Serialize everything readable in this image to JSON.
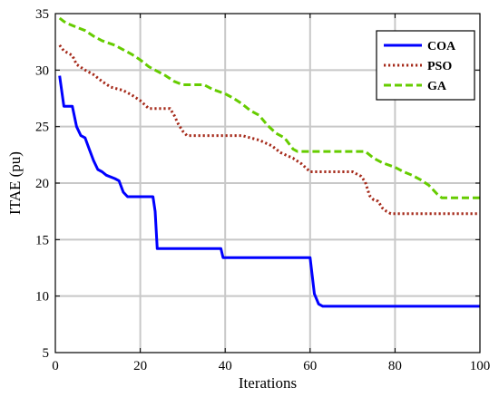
{
  "chart_data": {
    "type": "line",
    "title": "",
    "xlabel": "Iterations",
    "ylabel": "ITAE (pu)",
    "xlim": [
      0,
      100
    ],
    "ylim": [
      5,
      35
    ],
    "xticks": [
      0,
      20,
      40,
      60,
      80,
      100
    ],
    "yticks": [
      5,
      10,
      15,
      20,
      25,
      30,
      35
    ],
    "grid": true,
    "legend_position": "top-right",
    "series": [
      {
        "name": "COA",
        "color": "#0000ff",
        "style": "solid",
        "points": [
          [
            1,
            29.5
          ],
          [
            2,
            26.8
          ],
          [
            4,
            26.8
          ],
          [
            5,
            25
          ],
          [
            6,
            24.2
          ],
          [
            7,
            24
          ],
          [
            8,
            23
          ],
          [
            9,
            22
          ],
          [
            10,
            21.2
          ],
          [
            11,
            21
          ],
          [
            12,
            20.7
          ],
          [
            14,
            20.4
          ],
          [
            15,
            20.2
          ],
          [
            16,
            19.2
          ],
          [
            17,
            18.8
          ],
          [
            23,
            18.8
          ],
          [
            23.5,
            17.5
          ],
          [
            24,
            14.2
          ],
          [
            39,
            14.2
          ],
          [
            39.5,
            13.4
          ],
          [
            60,
            13.4
          ],
          [
            61,
            10.2
          ],
          [
            62,
            9.3
          ],
          [
            63,
            9.1
          ],
          [
            100,
            9.1
          ]
        ]
      },
      {
        "name": "PSO",
        "color": "#a52a1a",
        "style": "dotted",
        "points": [
          [
            1,
            32.2
          ],
          [
            2,
            31.7
          ],
          [
            4,
            31.3
          ],
          [
            5,
            30.5
          ],
          [
            7,
            30
          ],
          [
            9,
            29.6
          ],
          [
            11,
            29
          ],
          [
            13,
            28.5
          ],
          [
            16,
            28.2
          ],
          [
            18,
            27.8
          ],
          [
            20,
            27.3
          ],
          [
            22,
            26.6
          ],
          [
            27,
            26.6
          ],
          [
            28,
            26
          ],
          [
            29,
            25.2
          ],
          [
            30,
            24.6
          ],
          [
            31,
            24.2
          ],
          [
            44,
            24.2
          ],
          [
            48,
            23.8
          ],
          [
            51,
            23.3
          ],
          [
            53,
            22.7
          ],
          [
            56,
            22.2
          ],
          [
            58,
            21.7
          ],
          [
            60,
            21
          ],
          [
            70,
            21
          ],
          [
            72,
            20.6
          ],
          [
            73,
            20.1
          ],
          [
            74,
            18.9
          ],
          [
            75,
            18.5
          ],
          [
            76,
            18.4
          ],
          [
            77,
            17.8
          ],
          [
            78,
            17.5
          ],
          [
            79,
            17.3
          ],
          [
            100,
            17.3
          ]
        ]
      },
      {
        "name": "GA",
        "color": "#66cc00",
        "style": "dashed",
        "points": [
          [
            1,
            34.6
          ],
          [
            2,
            34.3
          ],
          [
            3,
            34.1
          ],
          [
            5,
            33.8
          ],
          [
            7,
            33.5
          ],
          [
            9,
            33
          ],
          [
            11,
            32.6
          ],
          [
            14,
            32.2
          ],
          [
            16,
            31.8
          ],
          [
            18,
            31.4
          ],
          [
            20,
            30.9
          ],
          [
            22,
            30.3
          ],
          [
            24,
            29.9
          ],
          [
            26,
            29.5
          ],
          [
            28,
            29
          ],
          [
            30,
            28.7
          ],
          [
            35,
            28.7
          ],
          [
            37,
            28.3
          ],
          [
            40,
            27.9
          ],
          [
            42,
            27.5
          ],
          [
            44,
            27
          ],
          [
            46,
            26.4
          ],
          [
            48,
            26
          ],
          [
            50,
            25.1
          ],
          [
            52,
            24.4
          ],
          [
            54,
            24
          ],
          [
            55,
            23.5
          ],
          [
            56,
            23
          ],
          [
            57,
            22.8
          ],
          [
            73,
            22.8
          ],
          [
            75,
            22.2
          ],
          [
            77,
            21.8
          ],
          [
            80,
            21.4
          ],
          [
            82,
            21
          ],
          [
            84,
            20.7
          ],
          [
            86,
            20.3
          ],
          [
            88,
            19.8
          ],
          [
            89,
            19.4
          ],
          [
            90,
            19
          ],
          [
            91,
            18.7
          ],
          [
            100,
            18.7
          ]
        ]
      }
    ]
  }
}
